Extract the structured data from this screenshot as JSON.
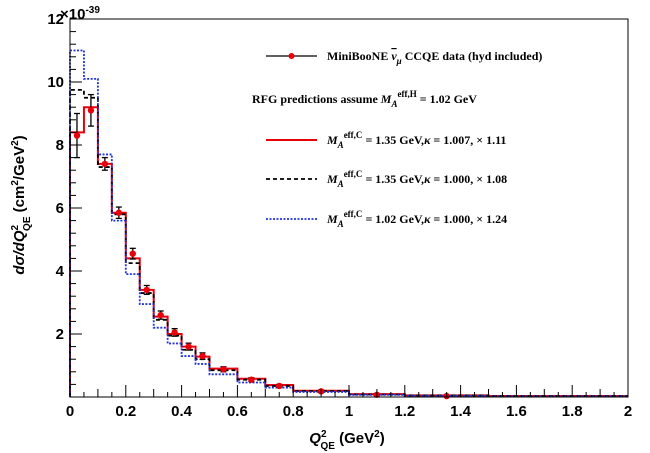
{
  "chart_data": {
    "type": "line",
    "subtype": "step-histogram-with-data-points",
    "xlabel": "Q",
    "xlabel_sup": "2",
    "xlabel_sub": "QE",
    "xlabel_units": " (GeV",
    "xlabel_units_sup": "2",
    "xlabel_units_close": ")",
    "ylabel_pre": "d",
    "ylabel_sigma": "σ",
    "ylabel_mid": "/dQ",
    "ylabel_sup": "2",
    "ylabel_sub": "QE",
    "ylabel_units": " (cm",
    "ylabel_units_sup": "2",
    "ylabel_units_mid": "/GeV",
    "ylabel_units_sup2": "2",
    "ylabel_units_close": ")",
    "y_exponent": "×10",
    "y_exponent_sup": "-39",
    "xlim": [
      0,
      2
    ],
    "ylim": [
      0,
      12
    ],
    "xticks": [
      "0",
      "0.2",
      "0.4",
      "0.6",
      "0.8",
      "1",
      "1.2",
      "1.4",
      "1.6",
      "1.8",
      "2"
    ],
    "xtick_values": [
      0,
      0.2,
      0.4,
      0.6,
      0.8,
      1.0,
      1.2,
      1.4,
      1.6,
      1.8,
      2.0
    ],
    "yticks": [
      "2",
      "4",
      "6",
      "8",
      "10",
      "12"
    ],
    "ytick_values": [
      2,
      4,
      6,
      8,
      10,
      12
    ],
    "bin_edges": [
      0,
      0.05,
      0.1,
      0.15,
      0.2,
      0.25,
      0.3,
      0.35,
      0.4,
      0.45,
      0.5,
      0.6,
      0.7,
      0.8,
      1.0,
      1.2,
      1.5,
      2.0
    ],
    "data_points": {
      "x": [
        0.025,
        0.075,
        0.125,
        0.175,
        0.225,
        0.275,
        0.325,
        0.375,
        0.425,
        0.475,
        0.55,
        0.65,
        0.75,
        0.9,
        1.1,
        1.35
      ],
      "y": [
        8.3,
        9.1,
        7.4,
        5.85,
        4.55,
        3.4,
        2.6,
        2.05,
        1.6,
        1.3,
        0.88,
        0.55,
        0.35,
        0.18,
        0.07,
        0.03
      ],
      "err": [
        0.7,
        0.5,
        0.2,
        0.18,
        0.17,
        0.14,
        0.13,
        0.12,
        0.11,
        0.1,
        0.08,
        0.06,
        0.05,
        0.04,
        0.03,
        0.02
      ],
      "color": "#e8000b"
    },
    "series": [
      {
        "values": [
          8.4,
          9.2,
          7.4,
          5.85,
          4.4,
          3.4,
          2.55,
          2.0,
          1.6,
          1.28,
          0.9,
          0.58,
          0.38,
          0.2,
          0.09,
          0.05,
          0.03
        ],
        "color": "#e8000b",
        "dash": "solid"
      },
      {
        "values": [
          9.75,
          9.5,
          7.3,
          5.8,
          4.25,
          3.3,
          2.45,
          1.95,
          1.5,
          1.2,
          0.85,
          0.55,
          0.35,
          0.19,
          0.08,
          0.05,
          0.03
        ],
        "color": "#000000",
        "dash": "dashed"
      },
      {
        "values": [
          11.0,
          10.1,
          7.7,
          5.6,
          3.9,
          2.95,
          2.2,
          1.7,
          1.3,
          1.05,
          0.72,
          0.46,
          0.3,
          0.16,
          0.07,
          0.04,
          0.02
        ],
        "color": "#2233dd",
        "dash": "dotted"
      }
    ],
    "legend": {
      "placement": "top-right",
      "entries": [
        {
          "parts": [
            {
              "t": "MiniBooNE "
            },
            {
              "t": "ν",
              "bar": true,
              "italic": true
            },
            {
              "t": "μ",
              "sub": true,
              "italic": true
            },
            {
              "t": " CCQE data (hyd included)"
            }
          ]
        },
        {
          "parts": [
            {
              "t": "RFG predictions assume "
            },
            {
              "t": "M",
              "italic": true
            },
            {
              "t": "A",
              "sub": true,
              "italic": true
            },
            {
              "t": "eff,H",
              "sup": true
            },
            {
              "t": " = 1.02 GeV"
            }
          ]
        },
        {
          "parts": [
            {
              "t": "M",
              "italic": true
            },
            {
              "t": "A",
              "sub": true,
              "italic": true
            },
            {
              "t": "eff,C",
              "sup": true
            },
            {
              "t": " = 1.35 GeV,"
            },
            {
              "t": "κ",
              "italic": true
            },
            {
              "t": " = 1.007, × 1.11"
            }
          ]
        },
        {
          "parts": [
            {
              "t": "M",
              "italic": true
            },
            {
              "t": "A",
              "sub": true,
              "italic": true
            },
            {
              "t": "eff,C",
              "sup": true
            },
            {
              "t": " = 1.35 GeV,"
            },
            {
              "t": "κ",
              "italic": true
            },
            {
              "t": " = 1.000, × 1.08"
            }
          ]
        },
        {
          "parts": [
            {
              "t": "M",
              "italic": true
            },
            {
              "t": "A",
              "sub": true,
              "italic": true
            },
            {
              "t": "eff,C",
              "sup": true
            },
            {
              "t": " = 1.02 GeV,"
            },
            {
              "t": "κ",
              "italic": true
            },
            {
              "t": " = 1.000, × 1.24"
            }
          ]
        }
      ]
    },
    "grid": false
  }
}
